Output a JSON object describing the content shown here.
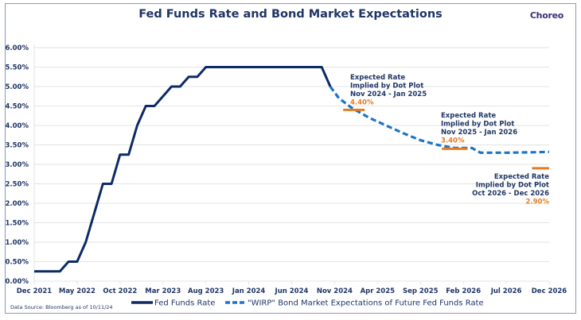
{
  "header": {
    "title": "Fed Funds Rate and Bond Market Expectations",
    "brand": "Choreo"
  },
  "footer": {
    "source": "Data Source: Bloomberg as of 10/11/24"
  },
  "colors": {
    "fed_funds": "#0d2a66",
    "wirp": "#1b75c4",
    "dot_plot": "#e57b25",
    "grid": "#e3e3e3",
    "text": "#1f3566"
  },
  "chart_data": {
    "type": "line",
    "title": "Fed Funds Rate and Bond Market Expectations",
    "xlabel": "",
    "ylabel": "",
    "ylim": [
      0,
      6
    ],
    "y_ticks": [
      "0.00%",
      "0.50%",
      "1.00%",
      "1.50%",
      "2.00%",
      "2.50%",
      "3.00%",
      "3.50%",
      "4.00%",
      "4.50%",
      "5.00%",
      "5.50%",
      "6.00%"
    ],
    "y_tick_values": [
      0,
      0.5,
      1,
      1.5,
      2,
      2.5,
      3,
      3.5,
      4,
      4.5,
      5,
      5.5,
      6
    ],
    "x_ticks": [
      "Dec 2021",
      "May 2022",
      "Oct 2022",
      "Mar 2023",
      "Aug 2023",
      "Jan 2024",
      "Jun 2024",
      "Nov 2024",
      "Apr 2025",
      "Sep 2025",
      "Feb 2026",
      "Jul 2026",
      "Dec 2026"
    ],
    "x_tick_months": [
      0,
      5,
      10,
      15,
      20,
      25,
      30,
      35,
      40,
      45,
      50,
      55,
      60
    ],
    "x_unit": "months since Dec 2021",
    "grid": true,
    "legend_position": "bottom",
    "series": [
      {
        "name": "Fed Funds Rate",
        "style": "solid",
        "points": [
          [
            0,
            0.25
          ],
          [
            3,
            0.25
          ],
          [
            4,
            0.5
          ],
          [
            5,
            0.5
          ],
          [
            6,
            1.0
          ],
          [
            7,
            1.75
          ],
          [
            8,
            2.5
          ],
          [
            9,
            2.5
          ],
          [
            10,
            3.25
          ],
          [
            11,
            3.25
          ],
          [
            12,
            4.0
          ],
          [
            13,
            4.5
          ],
          [
            14,
            4.5
          ],
          [
            15,
            4.75
          ],
          [
            16,
            5.0
          ],
          [
            17,
            5.0
          ],
          [
            18,
            5.25
          ],
          [
            19,
            5.25
          ],
          [
            20,
            5.5
          ],
          [
            33.5,
            5.5
          ],
          [
            34.5,
            5.0
          ]
        ]
      },
      {
        "name": "\"WIRP\" Bond Market Expectations of Future Fed Funds Rate",
        "style": "dashed",
        "points": [
          [
            34.5,
            5.0
          ],
          [
            35.5,
            4.7
          ],
          [
            37,
            4.45
          ],
          [
            39,
            4.2
          ],
          [
            41,
            4.0
          ],
          [
            43,
            3.8
          ],
          [
            45,
            3.62
          ],
          [
            47,
            3.5
          ],
          [
            49,
            3.42
          ],
          [
            51,
            3.42
          ],
          [
            52,
            3.3
          ],
          [
            55,
            3.3
          ],
          [
            58,
            3.31
          ],
          [
            60,
            3.32
          ]
        ]
      }
    ],
    "annotations": [
      {
        "lines": [
          "Expected Rate",
          "Implied by Dot Plot",
          "Nov 2024 - Jan 2025"
        ],
        "value_label": "4.40%",
        "value": 4.4,
        "x_range": [
          36,
          38.5
        ],
        "align": "left"
      },
      {
        "lines": [
          "Expected Rate",
          "Implied by Dot Plot",
          "Nov 2025 - Jan 2026"
        ],
        "value_label": "3.40%",
        "value": 3.4,
        "x_range": [
          47.5,
          50.5
        ],
        "align": "left"
      },
      {
        "lines": [
          "Expected Rate",
          "Implied by Dot Plot",
          "Oct 2026 - Dec 2026"
        ],
        "value_label": "2.90%",
        "value": 2.9,
        "x_range": [
          58,
          60
        ],
        "align": "right"
      }
    ]
  }
}
